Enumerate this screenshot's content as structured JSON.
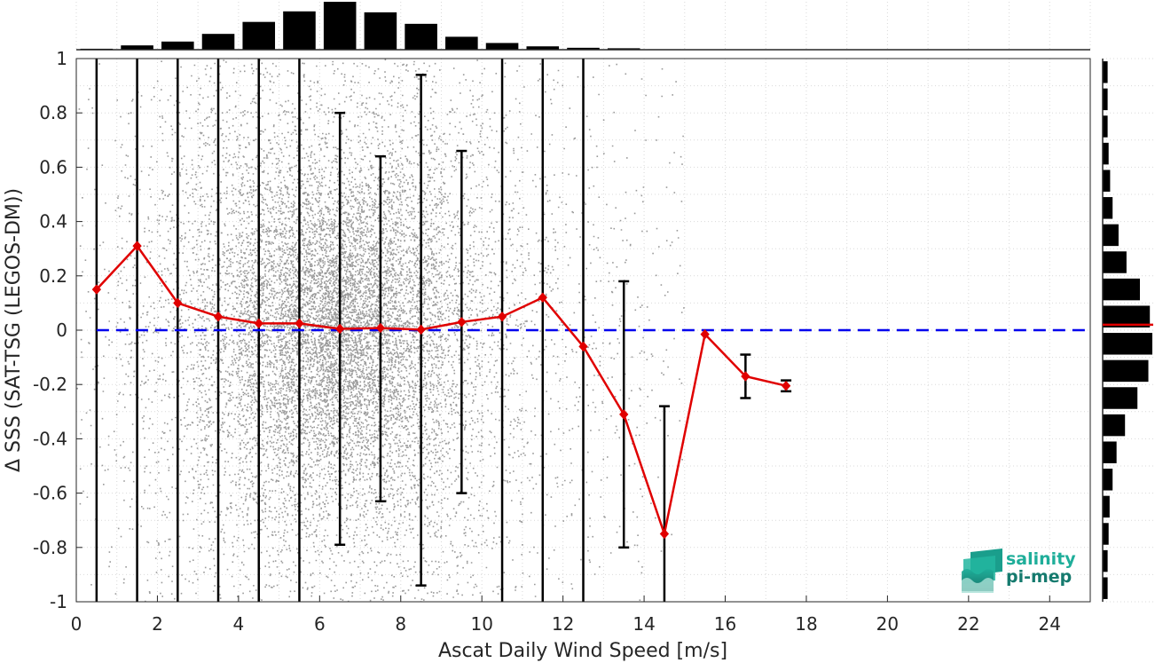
{
  "chart_data": {
    "type": "scatter",
    "xlabel": "Ascat Daily Wind Speed [m/s]",
    "ylabel": "Δ SSS (SAT-TSG (LEGOS-DM))",
    "xlim": [
      0,
      25
    ],
    "ylim": [
      -1,
      1
    ],
    "xticks": [
      0,
      2,
      4,
      6,
      8,
      10,
      12,
      14,
      16,
      18,
      20,
      22,
      24
    ],
    "yticks": [
      -1,
      -0.8,
      -0.6,
      -0.4,
      -0.2,
      0,
      0.2,
      0.4,
      0.6,
      0.8,
      1
    ],
    "grid": true,
    "reference_line": {
      "y": 0,
      "style": "dashed",
      "color": "#0000ee"
    },
    "scatter_color": "#888888",
    "series": [
      {
        "color": "#e00000",
        "x": [
          0.5,
          1.5,
          2.5,
          3.5,
          4.5,
          5.5,
          6.5,
          7.5,
          8.5,
          9.5,
          10.5,
          11.5,
          12.5,
          13.5,
          14.5,
          15.5,
          16.5,
          17.5
        ],
        "y": [
          0.15,
          0.31,
          0.1,
          0.05,
          0.025,
          0.025,
          0.005,
          0.008,
          0.002,
          0.03,
          0.05,
          0.12,
          -0.06,
          -0.31,
          -0.75,
          -0.015,
          -0.17,
          -0.205
        ],
        "err_low": [
          -1,
          -1,
          -1,
          -1,
          -1,
          -1,
          -0.79,
          -0.63,
          -0.94,
          -0.6,
          -1,
          -1,
          -1,
          -0.8,
          -1,
          null,
          -0.25,
          -0.225
        ],
        "err_high": [
          1,
          1,
          1,
          1,
          1,
          1,
          0.8,
          0.64,
          0.94,
          0.66,
          1,
          1,
          1,
          0.18,
          -0.28,
          null,
          -0.09,
          -0.185
        ]
      }
    ],
    "top_histogram": {
      "x": [
        0.5,
        1.5,
        2.5,
        3.5,
        4.5,
        5.5,
        6.5,
        7.5,
        8.5,
        9.5,
        10.5,
        11.5,
        12.5,
        13.5,
        14.5
      ],
      "relative_counts": [
        0.02,
        0.09,
        0.17,
        0.33,
        0.58,
        0.8,
        1.0,
        0.78,
        0.54,
        0.27,
        0.14,
        0.07,
        0.04,
        0.03,
        0.01
      ]
    },
    "right_histogram": {
      "y": [
        -0.95,
        -0.85,
        -0.75,
        -0.65,
        -0.55,
        -0.45,
        -0.35,
        -0.25,
        -0.15,
        -0.05,
        0.05,
        0.15,
        0.25,
        0.35,
        0.45,
        0.55,
        0.65,
        0.75,
        0.85,
        0.95
      ],
      "relative_counts": [
        0.1,
        0.1,
        0.12,
        0.14,
        0.2,
        0.28,
        0.45,
        0.7,
        0.92,
        1.0,
        0.95,
        0.75,
        0.48,
        0.32,
        0.2,
        0.15,
        0.12,
        0.1,
        0.1,
        0.1
      ],
      "mean_line": {
        "y": 0.02,
        "color": "#e00000"
      }
    }
  },
  "logo": {
    "line1": "salinity",
    "line2": "pi-mep"
  }
}
